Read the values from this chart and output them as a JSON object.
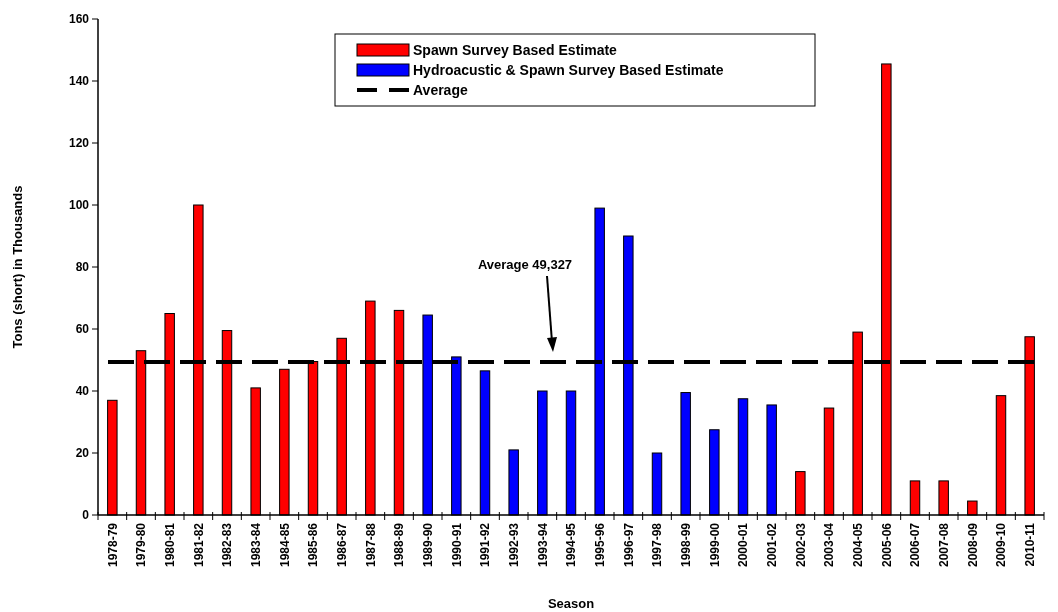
{
  "chart_data": {
    "type": "bar",
    "xlabel": "Season",
    "ylabel": "Tons (short) in Thousands",
    "categories": [
      "1978-79",
      "1979-80",
      "1980-81",
      "1981-82",
      "1982-83",
      "1983-84",
      "1984-85",
      "1985-86",
      "1986-87",
      "1987-88",
      "1988-89",
      "1989-90",
      "1990-91",
      "1991-92",
      "1992-93",
      "1993-94",
      "1994-95",
      "1995-96",
      "1996-97",
      "1997-98",
      "1998-99",
      "1999-00",
      "2000-01",
      "2001-02",
      "2002-03",
      "2003-04",
      "2004-05",
      "2005-06",
      "2006-07",
      "2007-08",
      "2008-09",
      "2009-10",
      "2010-11"
    ],
    "series": [
      {
        "name": "Spawn Survey Based Estimate",
        "color": "#ff0000",
        "values": [
          37,
          53,
          65,
          100,
          59.5,
          41,
          47,
          49.5,
          57,
          69,
          66,
          null,
          null,
          null,
          null,
          null,
          null,
          null,
          null,
          null,
          null,
          null,
          null,
          null,
          14,
          34.5,
          59,
          145.5,
          11,
          11,
          4.5,
          38.5,
          57.5
        ]
      },
      {
        "name": "Hydroacustic & Spawn Survey Based Estimate",
        "color": "#0000ff",
        "values": [
          null,
          null,
          null,
          null,
          null,
          null,
          null,
          null,
          null,
          null,
          null,
          64.5,
          51,
          46.5,
          21,
          40,
          40,
          99,
          90,
          20,
          39.5,
          27.5,
          37.5,
          35.5,
          null,
          null,
          null,
          null,
          null,
          null,
          null,
          null,
          null
        ]
      }
    ],
    "ref_lines": [
      {
        "axis": "y",
        "value": 49.327,
        "label": "Average",
        "color": "#000000",
        "line_style": "dashed"
      }
    ],
    "annotations": [
      "Average 49,327"
    ],
    "ylim": [
      0,
      160
    ],
    "yticks": [
      0,
      20,
      40,
      60,
      80,
      100,
      120,
      140,
      160
    ],
    "grid": false,
    "legend": "top"
  }
}
